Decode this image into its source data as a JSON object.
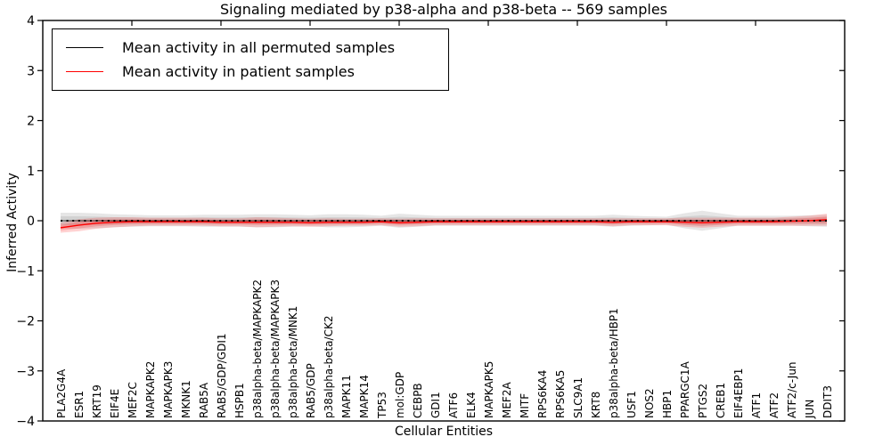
{
  "figure": {
    "title": "Signaling mediated by p38-alpha and p38-beta -- 569 samples"
  },
  "chart_data": {
    "type": "line",
    "title": "Signaling mediated by p38-alpha and p38-beta -- 569 samples",
    "xlabel": "Cellular Entities",
    "ylabel": "Inferred Activity",
    "ylim": [
      -4,
      4
    ],
    "ytick_labels": [
      "4",
      "3",
      "2",
      "1",
      "0",
      "−1",
      "−2",
      "−3",
      "−4"
    ],
    "grid": false,
    "legend_position": "upper left",
    "categories": [
      "PLA2G4A",
      "ESR1",
      "KRT19",
      "EIF4E",
      "MEF2C",
      "MAPKAPK2",
      "MAPKAPK3",
      "MKNK1",
      "RAB5A",
      "RAB5/GDP/GDI1",
      "HSPB1",
      "p38alpha-beta/MAPKAPK2",
      "p38alpha-beta/MAPKAPK3",
      "p38alpha-beta/MNK1",
      "RAB5/GDP",
      "p38alpha-beta/CK2",
      "MAPK11",
      "MAPK14",
      "TP53",
      "mol:GDP",
      "CEBPB",
      "GDI1",
      "ATF6",
      "ELK4",
      "MAPKAPK5",
      "MEF2A",
      "MITF",
      "RPS6KA4",
      "RPS6KA5",
      "SLC9A1",
      "KRT8",
      "p38alpha-beta/HBP1",
      "USF1",
      "NOS2",
      "HBP1",
      "PPARGC1A",
      "PTGS2",
      "CREB1",
      "EIF4EBP1",
      "ATF1",
      "ATF2",
      "ATF2/c-Jun",
      "JUN",
      "DDIT3"
    ],
    "series": [
      {
        "name": "Mean activity in all permuted samples",
        "color": "#000000",
        "linestyle": "dotted",
        "values": [
          0,
          0,
          0,
          0,
          0,
          0,
          0,
          0,
          0,
          0,
          0,
          0,
          0,
          0,
          0,
          0,
          0,
          0,
          0,
          0,
          0,
          0,
          0,
          0,
          0,
          0,
          0,
          0,
          0,
          0,
          0,
          0,
          0,
          0,
          0,
          0,
          0,
          0,
          0,
          0,
          0,
          0,
          0,
          0
        ],
        "band_halfwidth": [
          0.16,
          0.16,
          0.15,
          0.13,
          0.12,
          0.11,
          0.11,
          0.11,
          0.12,
          0.12,
          0.12,
          0.13,
          0.13,
          0.12,
          0.11,
          0.13,
          0.13,
          0.12,
          0.1,
          0.14,
          0.12,
          0.1,
          0.1,
          0.1,
          0.1,
          0.1,
          0.1,
          0.1,
          0.1,
          0.1,
          0.1,
          0.12,
          0.1,
          0.09,
          0.08,
          0.15,
          0.2,
          0.15,
          0.1,
          0.1,
          0.1,
          0.1,
          0.11,
          0.12
        ]
      },
      {
        "name": "Mean activity in patient samples",
        "color": "#ff0000",
        "linestyle": "solid",
        "values": [
          -0.14,
          -0.09,
          -0.05,
          -0.03,
          -0.02,
          -0.02,
          -0.02,
          -0.02,
          -0.02,
          -0.03,
          -0.03,
          -0.03,
          -0.03,
          -0.03,
          -0.04,
          -0.03,
          -0.03,
          -0.03,
          -0.02,
          -0.04,
          -0.03,
          -0.02,
          -0.02,
          -0.02,
          -0.02,
          -0.02,
          -0.02,
          -0.02,
          -0.02,
          -0.02,
          -0.02,
          -0.03,
          -0.02,
          -0.02,
          -0.02,
          -0.03,
          -0.04,
          -0.03,
          -0.02,
          -0.02,
          -0.02,
          -0.01,
          0.0,
          0.02
        ],
        "band_halfwidth": [
          0.1,
          0.12,
          0.11,
          0.1,
          0.09,
          0.08,
          0.08,
          0.08,
          0.08,
          0.08,
          0.08,
          0.1,
          0.09,
          0.08,
          0.08,
          0.08,
          0.07,
          0.07,
          0.07,
          0.08,
          0.08,
          0.07,
          0.07,
          0.07,
          0.07,
          0.07,
          0.07,
          0.07,
          0.07,
          0.07,
          0.07,
          0.08,
          0.07,
          0.07,
          0.07,
          0.09,
          0.1,
          0.09,
          0.08,
          0.08,
          0.08,
          0.09,
          0.1,
          0.12
        ]
      }
    ],
    "band_colors": {
      "permuted": "rgba(130,130,130,0.20)",
      "patient": "rgba(255,30,30,0.20)"
    },
    "frame_color": "#000000"
  }
}
